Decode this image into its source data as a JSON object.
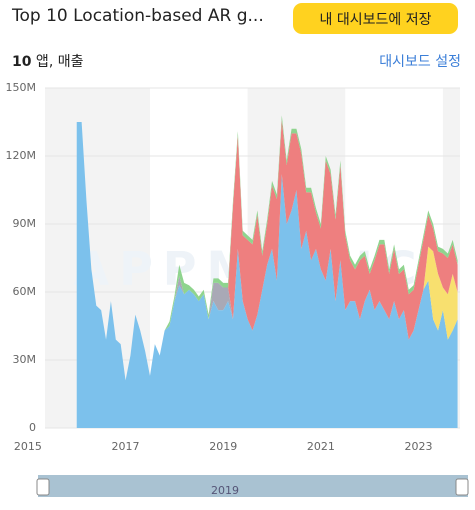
{
  "header": {
    "title": "Top 10 Location-based AR g...",
    "button": "내 대시보드에 저장"
  },
  "subheader": {
    "count": "10",
    "label": " 앱, 매출",
    "link": "대시보드 설정"
  },
  "scrollbar": {
    "label": "2019"
  },
  "chart_data": {
    "type": "stacked-area",
    "watermark": "APPMAGIC",
    "xlim": [
      2015.85,
      2024.35
    ],
    "xticks": [
      {
        "value": 2015.5,
        "label": "2015"
      },
      {
        "value": 2017.5,
        "label": "2017"
      },
      {
        "value": 2019.5,
        "label": "2019"
      },
      {
        "value": 2021.5,
        "label": "2021"
      },
      {
        "value": 2023.5,
        "label": "2023"
      }
    ],
    "ylim": [
      0,
      150
    ],
    "yticks": [
      0,
      {
        "value": 30,
        "label": "30M"
      },
      {
        "value": 60,
        "label": "60M"
      },
      {
        "value": 90,
        "label": "90M"
      },
      {
        "value": 120,
        "label": "120M"
      },
      {
        "value": 150,
        "label": "150M"
      }
    ],
    "x": [
      2016.5,
      2016.6,
      2016.7,
      2016.8,
      2016.9,
      2017.0,
      2017.1,
      2017.2,
      2017.3,
      2017.4,
      2017.5,
      2017.6,
      2017.7,
      2017.8,
      2017.9,
      2018.0,
      2018.1,
      2018.2,
      2018.3,
      2018.4,
      2018.5,
      2018.6,
      2018.7,
      2018.8,
      2018.9,
      2019.0,
      2019.1,
      2019.2,
      2019.3,
      2019.4,
      2019.5,
      2019.6,
      2019.7,
      2019.8,
      2019.9,
      2020.0,
      2020.1,
      2020.2,
      2020.3,
      2020.4,
      2020.5,
      2020.6,
      2020.7,
      2020.8,
      2020.9,
      2021.0,
      2021.1,
      2021.2,
      2021.3,
      2021.4,
      2021.5,
      2021.6,
      2021.7,
      2021.8,
      2021.9,
      2022.0,
      2022.1,
      2022.2,
      2022.3,
      2022.4,
      2022.5,
      2022.6,
      2022.7,
      2022.8,
      2022.9,
      2023.0,
      2023.1,
      2023.2,
      2023.3,
      2023.4,
      2023.5,
      2023.6,
      2023.7,
      2023.8,
      2023.9,
      2024.0,
      2024.1,
      2024.2,
      2024.3
    ],
    "series": [
      {
        "color": "#7cc1ec",
        "values": [
          135,
          135,
          100,
          70,
          54,
          52,
          39,
          56,
          39,
          37,
          21,
          32,
          50,
          43,
          34,
          23,
          37,
          32,
          43,
          45,
          56,
          63,
          59,
          61,
          59,
          56,
          59,
          48,
          56,
          52,
          52,
          56,
          48,
          79,
          56,
          48,
          43,
          50,
          61,
          72,
          79,
          65,
          112,
          90,
          96,
          105,
          79,
          87,
          74,
          79,
          70,
          65,
          79,
          56,
          74,
          52,
          56,
          56,
          48,
          56,
          61,
          52,
          56,
          52,
          48,
          56,
          48,
          52,
          39,
          43,
          52,
          61,
          65,
          48,
          43,
          52,
          39,
          43,
          48
        ]
      },
      {
        "color": "#f8e06f",
        "values": [
          0,
          0,
          0,
          0,
          0,
          0,
          0,
          0,
          0,
          0,
          0,
          0,
          0,
          0,
          0,
          0,
          0,
          0,
          0,
          0,
          0,
          0,
          0,
          0,
          0,
          0,
          0,
          0,
          0,
          0,
          0,
          0,
          0,
          0,
          0,
          0,
          0,
          0,
          0,
          0,
          0,
          0,
          0,
          0,
          0,
          0,
          0,
          0,
          0,
          0,
          0,
          0,
          0,
          0,
          0,
          0,
          0,
          0,
          0,
          0,
          0,
          0,
          0,
          0,
          0,
          0,
          0,
          0,
          0,
          0,
          0,
          0,
          15,
          30,
          25,
          10,
          20,
          25,
          12
        ]
      },
      {
        "color": "#a9a9b6",
        "values": [
          0,
          0,
          0,
          0,
          0,
          0,
          0,
          0,
          0,
          0,
          0,
          0,
          0,
          0,
          0,
          0,
          0,
          0,
          0,
          0,
          0,
          4,
          0,
          0,
          0,
          0,
          0,
          0,
          8,
          12,
          10,
          6,
          0,
          0,
          0,
          0,
          0,
          0,
          0,
          0,
          0,
          0,
          0,
          0,
          0,
          0,
          0,
          0,
          0,
          0,
          0,
          0,
          0,
          0,
          0,
          0,
          0,
          0,
          0,
          0,
          0,
          0,
          0,
          0,
          0,
          0,
          0,
          0,
          0,
          0,
          0,
          0,
          0,
          0,
          0,
          0,
          0,
          0,
          0
        ]
      },
      {
        "color": "#ee7f7f",
        "values": [
          0,
          0,
          0,
          0,
          0,
          0,
          0,
          0,
          0,
          0,
          0,
          0,
          0,
          0,
          0,
          0,
          0,
          0,
          0,
          0,
          0,
          0,
          0,
          0,
          0,
          0,
          0,
          0,
          0,
          0,
          0,
          0,
          50,
          50,
          29,
          35,
          38,
          44,
          15,
          18,
          28,
          36,
          24,
          26,
          34,
          25,
          42,
          17,
          30,
          16,
          18,
          53,
          33,
          36,
          42,
          33,
          18,
          14,
          26,
          20,
          7,
          22,
          25,
          29,
          20,
          23,
          20,
          18,
          20,
          18,
          20,
          22,
          14,
          10,
          10,
          15,
          16,
          13,
          12
        ]
      },
      {
        "color": "#8fd48e",
        "values": [
          0,
          0,
          0,
          0,
          0,
          0,
          0,
          0,
          0,
          0,
          0,
          0,
          0,
          0,
          0,
          0,
          0,
          0,
          0,
          2,
          2,
          5,
          5,
          2,
          2,
          2,
          2,
          2,
          2,
          2,
          2,
          2,
          2,
          2,
          2,
          2,
          2,
          2,
          2,
          2,
          2,
          2,
          2,
          2,
          2,
          2,
          2,
          2,
          2,
          2,
          2,
          2,
          2,
          2,
          2,
          2,
          2,
          2,
          2,
          2,
          2,
          2,
          2,
          2,
          2,
          2,
          2,
          2,
          2,
          2,
          2,
          2,
          2,
          2,
          2,
          2,
          2,
          2,
          2
        ]
      }
    ]
  }
}
